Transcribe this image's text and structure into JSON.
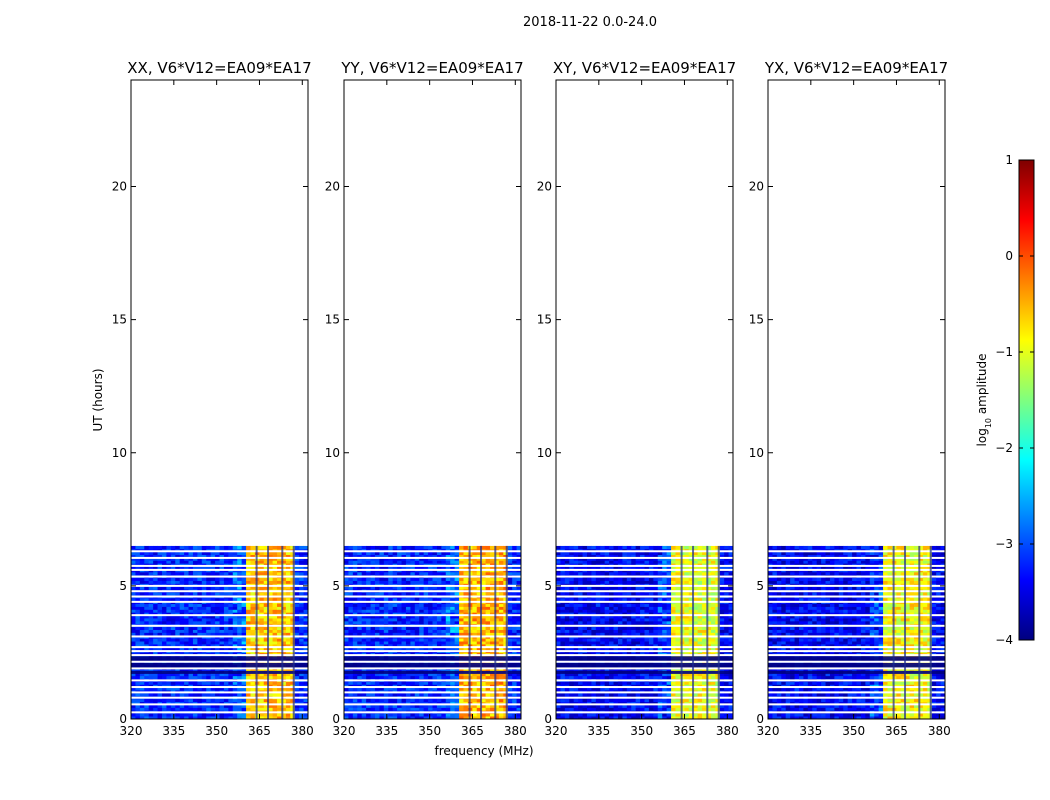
{
  "figure": {
    "suptitle": "2018-11-22 0.0-24.0",
    "xlabel": "frequency (MHz)",
    "ylabel": "UT (hours)"
  },
  "chart_data": [
    {
      "type": "heatmap",
      "title": "XX, V6*V12=EA09*EA17",
      "xlim": [
        320,
        382
      ],
      "ylim": [
        0,
        24
      ],
      "xticks": [
        320,
        335,
        350,
        365,
        380
      ],
      "yticks": [
        0,
        5,
        10,
        15,
        20
      ],
      "xlabel": "frequency (MHz)",
      "ylabel": "UT (hours)",
      "data_extent_hours": [
        0,
        6.5
      ],
      "background_log10_amplitude": -3.2,
      "bright_band_mhz": [
        360,
        378
      ],
      "bright_band_log10_amplitude": -0.6,
      "flagged_rows_hours": [
        0.25,
        0.55,
        0.8,
        1.0,
        1.2,
        1.45,
        1.9,
        2.15,
        2.4,
        2.55,
        2.7,
        3.1,
        3.5,
        3.9,
        4.4,
        4.6,
        4.8,
        5.0,
        5.35,
        5.6,
        5.75,
        6.05,
        6.3
      ],
      "dark_rows_hours": [
        1.75,
        1.95,
        2.05,
        2.2,
        2.3
      ],
      "flagged_columns_mhz": [
        364,
        368,
        373,
        377
      ]
    },
    {
      "type": "heatmap",
      "title": "YY, V6*V12=EA09*EA17",
      "xlim": [
        320,
        382
      ],
      "ylim": [
        0,
        24
      ],
      "xticks": [
        320,
        335,
        350,
        365,
        380
      ],
      "yticks": [
        0,
        5,
        10,
        15,
        20
      ],
      "data_extent_hours": [
        0,
        6.5
      ],
      "background_log10_amplitude": -3.2,
      "bright_band_mhz": [
        360,
        378
      ],
      "bright_band_log10_amplitude": -0.5,
      "flagged_rows_hours": [
        0.25,
        0.55,
        0.8,
        1.0,
        1.2,
        1.45,
        1.9,
        2.15,
        2.4,
        2.55,
        2.7,
        3.1,
        3.5,
        3.9,
        4.4,
        4.6,
        4.8,
        5.0,
        5.35,
        5.6,
        5.75,
        6.05,
        6.3
      ],
      "dark_rows_hours": [
        1.75,
        1.95,
        2.05,
        2.2,
        2.3
      ],
      "flagged_columns_mhz": [
        364,
        368,
        373,
        377
      ]
    },
    {
      "type": "heatmap",
      "title": "XY, V6*V12=EA09*EA17",
      "xlim": [
        320,
        382
      ],
      "ylim": [
        0,
        24
      ],
      "xticks": [
        320,
        335,
        350,
        365,
        380
      ],
      "yticks": [
        0,
        5,
        10,
        15,
        20
      ],
      "data_extent_hours": [
        0,
        6.5
      ],
      "background_log10_amplitude": -3.4,
      "bright_band_mhz": [
        360,
        378
      ],
      "bright_band_log10_amplitude": -1.0,
      "flagged_rows_hours": [
        0.25,
        0.55,
        0.8,
        1.0,
        1.2,
        1.45,
        1.9,
        2.15,
        2.4,
        2.55,
        2.7,
        3.1,
        3.5,
        3.9,
        4.4,
        4.6,
        4.8,
        5.0,
        5.35,
        5.6,
        5.75,
        6.05,
        6.3
      ],
      "dark_rows_hours": [
        1.75,
        1.95,
        2.05,
        2.2,
        2.3
      ],
      "flagged_columns_mhz": [
        364,
        368,
        373,
        377
      ]
    },
    {
      "type": "heatmap",
      "title": "YX, V6*V12=EA09*EA17",
      "xlim": [
        320,
        382
      ],
      "ylim": [
        0,
        24
      ],
      "xticks": [
        320,
        335,
        350,
        365,
        380
      ],
      "yticks": [
        0,
        5,
        10,
        15,
        20
      ],
      "data_extent_hours": [
        0,
        6.5
      ],
      "background_log10_amplitude": -3.4,
      "bright_band_mhz": [
        360,
        378
      ],
      "bright_band_log10_amplitude": -0.9,
      "flagged_rows_hours": [
        0.25,
        0.55,
        0.8,
        1.0,
        1.2,
        1.45,
        1.9,
        2.15,
        2.4,
        2.55,
        2.7,
        3.1,
        3.5,
        3.9,
        4.4,
        4.6,
        4.8,
        5.0,
        5.35,
        5.6,
        5.75,
        6.05,
        6.3
      ],
      "dark_rows_hours": [
        1.75,
        1.95,
        2.05,
        2.2,
        2.3
      ],
      "flagged_columns_mhz": [
        364,
        368,
        373,
        377
      ]
    }
  ],
  "colorbar": {
    "label": "log10 amplitude",
    "label_main": "log",
    "label_sub": "10",
    "label_rest": " amplitude",
    "range": [
      -4,
      1
    ],
    "ticks": [
      1,
      0,
      -1,
      -2,
      -3,
      -4
    ],
    "tick_labels": [
      "1",
      "0",
      "−1",
      "−2",
      "−3",
      "−4"
    ],
    "colors": [
      "#00007f",
      "#0000ff",
      "#007fff",
      "#00ffff",
      "#7fff7f",
      "#ffff00",
      "#ff7f00",
      "#ff0000",
      "#7f0000"
    ]
  }
}
